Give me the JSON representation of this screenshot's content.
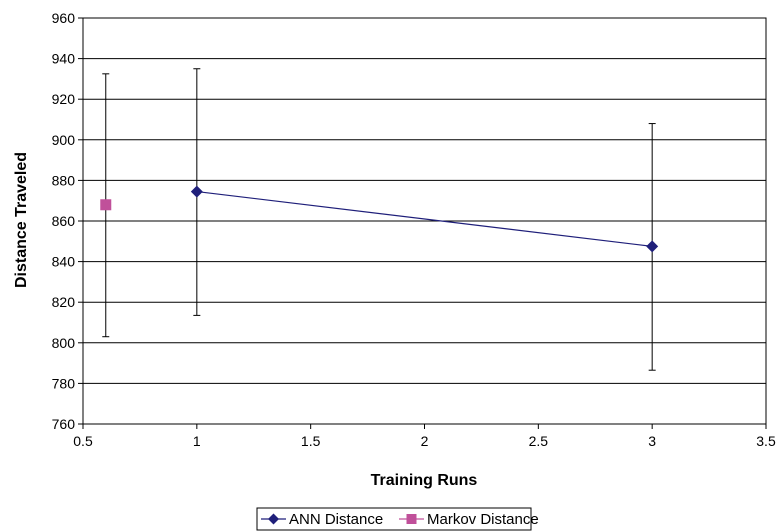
{
  "chart_data": {
    "type": "scatter",
    "xlabel": "Training Runs",
    "ylabel": "Distance Traveled",
    "xlim": [
      0.5,
      3.5
    ],
    "ylim": [
      760,
      960
    ],
    "x_ticks": [
      0.5,
      1,
      1.5,
      2,
      2.5,
      3,
      3.5
    ],
    "y_ticks": [
      760,
      780,
      800,
      820,
      840,
      860,
      880,
      900,
      920,
      940,
      960
    ],
    "grid": "horizontal",
    "legend_position": "bottom",
    "series": [
      {
        "name": "ANN Distance",
        "color": "#1f1f7a",
        "marker": "diamond",
        "line": true,
        "points": [
          {
            "x": 1,
            "y": 874.5,
            "err_low": 813.5,
            "err_high": 935
          },
          {
            "x": 3,
            "y": 847.5,
            "err_low": 786.5,
            "err_high": 908
          }
        ]
      },
      {
        "name": "Markov Distance",
        "color": "#c0509a",
        "marker": "square",
        "line": false,
        "points": [
          {
            "x": 0.6,
            "y": 868,
            "err_low": 803,
            "err_high": 932.5
          }
        ]
      }
    ]
  }
}
